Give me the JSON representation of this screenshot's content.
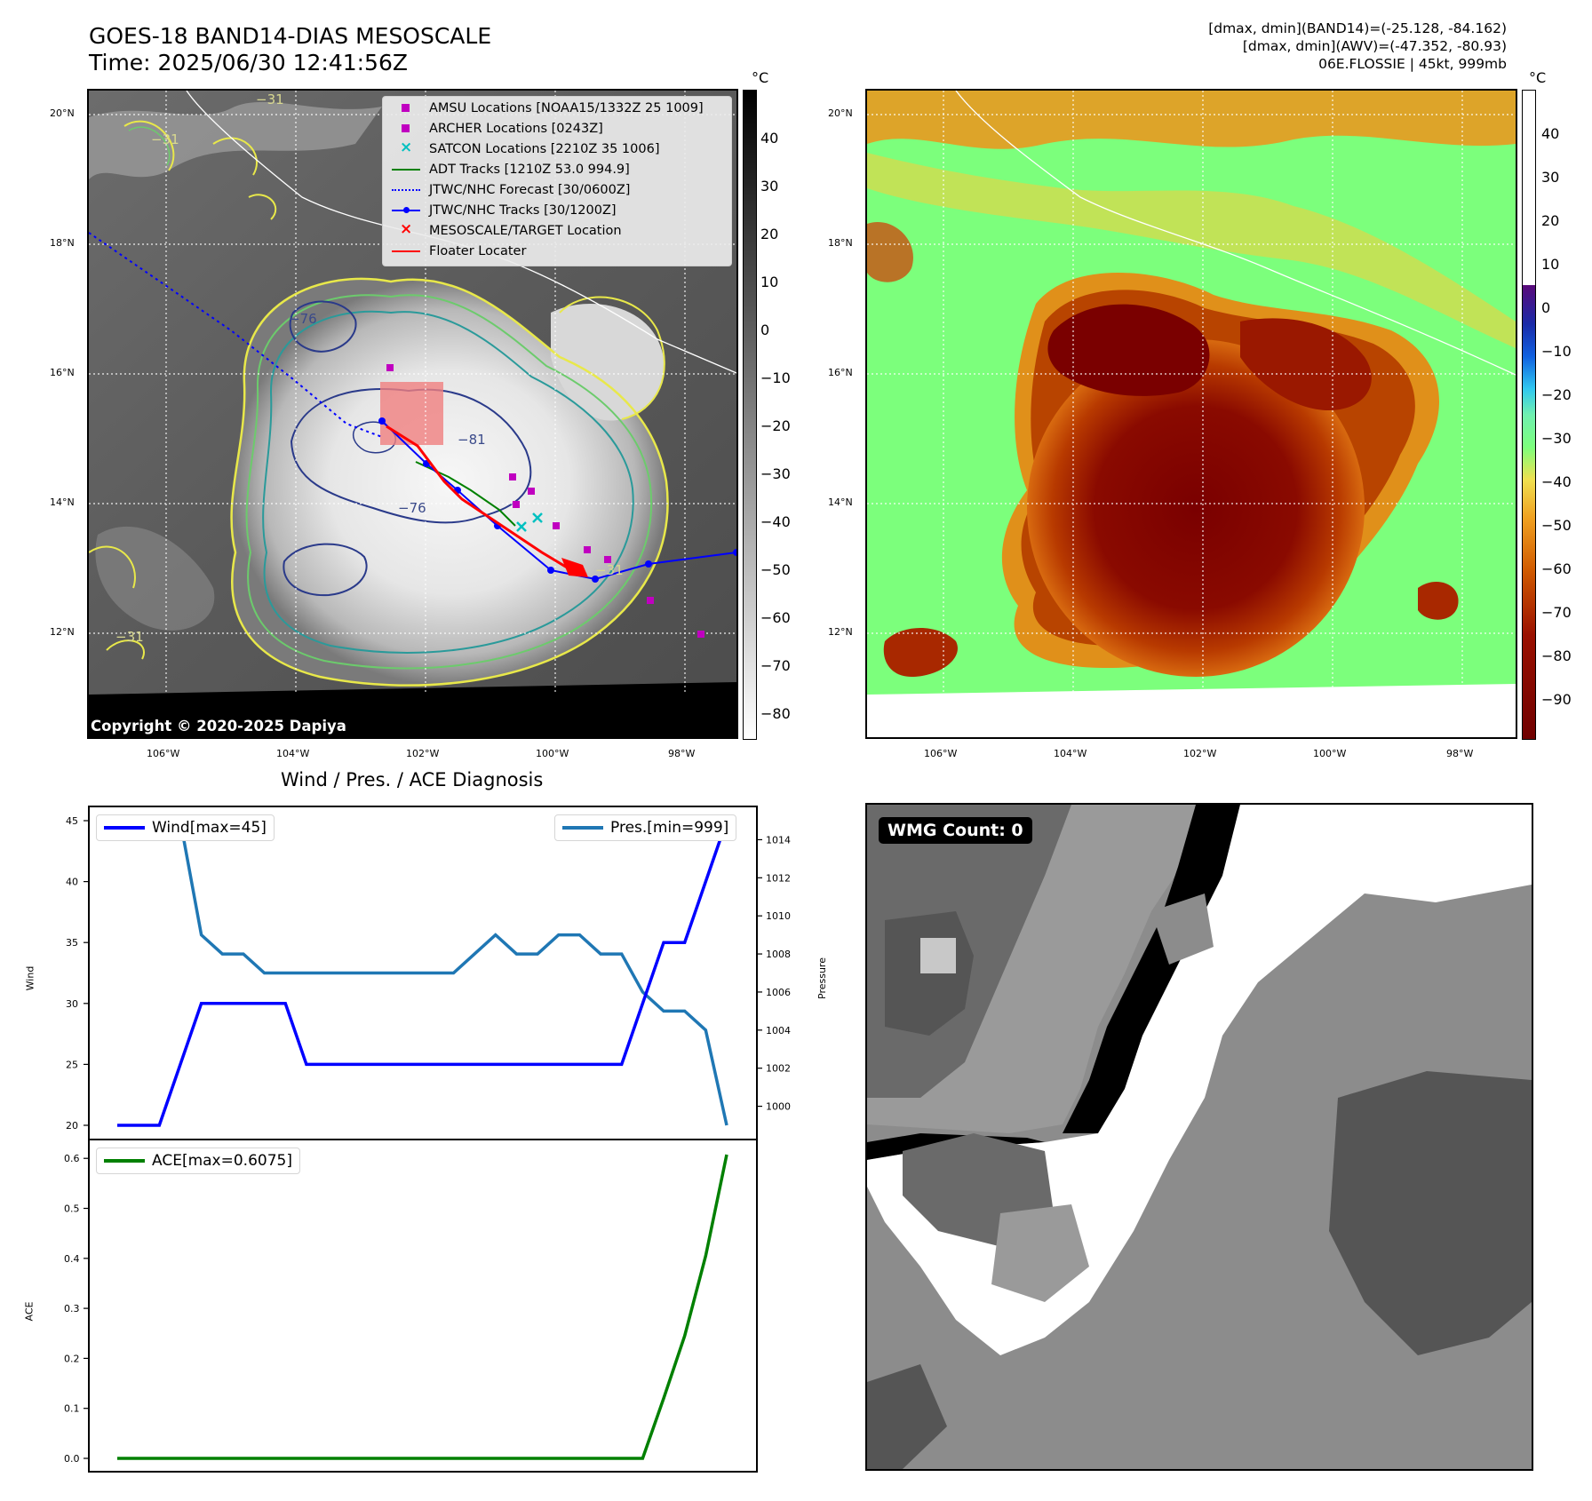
{
  "header": {
    "title_line1": "GOES-18 BAND14-DIAS MESOSCALE",
    "title_line2": "Time: 2025/06/30 12:41:56Z",
    "info_line1": "[dmax, dmin](BAND14)=(-25.128, -84.162)",
    "info_line2": "[dmax, dmin](AWV)=(-47.352, -80.93)",
    "info_line3": "06E.FLOSSIE | 45kt, 999mb"
  },
  "ir_panel": {
    "colorbar_unit": "°C",
    "colorbar_ticks": [
      "40",
      "30",
      "20",
      "10",
      "0",
      "−10",
      "−20",
      "−30",
      "−40",
      "−50",
      "−60",
      "−70",
      "−80"
    ],
    "lat_labels": [
      "20°N",
      "18°N",
      "16°N",
      "14°N",
      "12°N"
    ],
    "lon_labels": [
      "106°W",
      "104°W",
      "102°W",
      "100°W",
      "98°W"
    ],
    "copyright": "Copyright © 2020-2025 Dapiya",
    "contour_labels": [
      "−31",
      "−31",
      "−31",
      "−31",
      "−76",
      "−81",
      "−76",
      "−31",
      "−31"
    ],
    "legend": [
      {
        "label": "AMSU Locations [NOAA15/1332Z 25 1009]",
        "symbol": "square",
        "color": "#c000c0"
      },
      {
        "label": "ARCHER Locations [0243Z]",
        "symbol": "square",
        "color": "#c000c0"
      },
      {
        "label": "SATCON Locations [2210Z 35 1006]",
        "symbol": "x",
        "color": "#00c0c0"
      },
      {
        "label": "ADT Tracks [1210Z 53.0 994.9]",
        "symbol": "line",
        "color": "#008000"
      },
      {
        "label": "JTWC/NHC Forecast [30/0600Z]",
        "symbol": "dotted",
        "color": "#0000ff"
      },
      {
        "label": "JTWC/NHC Tracks [30/1200Z]",
        "symbol": "line-dot",
        "color": "#0000ff"
      },
      {
        "label": "MESOSCALE/TARGET Location",
        "symbol": "x",
        "color": "#ff0000"
      },
      {
        "label": "Floater Locater",
        "symbol": "line",
        "color": "#ff0000"
      }
    ]
  },
  "awv_panel": {
    "colorbar_unit": "°C",
    "colorbar_ticks": [
      "40",
      "30",
      "20",
      "10",
      "0",
      "−10",
      "−20",
      "−30",
      "−40",
      "−50",
      "−60",
      "−70",
      "−80",
      "−90"
    ],
    "lat_labels": [
      "20°N",
      "18°N",
      "16°N",
      "14°N",
      "12°N"
    ],
    "lon_labels": [
      "106°W",
      "104°W",
      "102°W",
      "100°W",
      "98°W"
    ]
  },
  "diagnosis": {
    "title": "Wind / Pres. / ACE Diagnosis",
    "wind_ylabel": "Wind",
    "pres_ylabel": "Pressure",
    "ace_ylabel": "ACE",
    "wind_legend": "Wind[max=45]",
    "pres_legend": "Pres.[min=999]",
    "ace_legend": "ACE[max=0.6075]",
    "colors": {
      "wind": "#0000ff",
      "pressure": "#1f77b4",
      "ace": "#008000"
    }
  },
  "wmg_panel": {
    "badge": "WMG Count: 0"
  },
  "chart_data": [
    {
      "type": "line",
      "name": "wind-pressure",
      "x": [
        0,
        1,
        2,
        3,
        4,
        5,
        6,
        7,
        8,
        9,
        10,
        11,
        12,
        13,
        14,
        15,
        16,
        17,
        18,
        19,
        20,
        21,
        22,
        23,
        24,
        25,
        26,
        27,
        28,
        29
      ],
      "series": [
        {
          "name": "Wind[max=45]",
          "axis": "left",
          "values": [
            20,
            20,
            20,
            25,
            30,
            30,
            30,
            30,
            30,
            25,
            25,
            25,
            25,
            25,
            25,
            25,
            25,
            25,
            25,
            25,
            25,
            25,
            25,
            25,
            25,
            30,
            35,
            35,
            40,
            45
          ]
        },
        {
          "name": "Pres.[min=999]",
          "axis": "right",
          "values": [
            1015,
            1015,
            1015,
            1015,
            1009,
            1008,
            1008,
            1007,
            1007,
            1007,
            1007,
            1007,
            1007,
            1007,
            1007,
            1007,
            1007,
            1008,
            1009,
            1008,
            1008,
            1009,
            1009,
            1008,
            1008,
            1006,
            1005,
            1005,
            1004,
            999
          ]
        }
      ],
      "ylabel": "Wind",
      "y2label": "Pressure",
      "ylim": [
        20,
        45
      ],
      "y2lim": [
        999,
        1015
      ],
      "yticks": [
        20,
        25,
        30,
        35,
        40,
        45
      ],
      "y2ticks": [
        1000,
        1002,
        1004,
        1006,
        1008,
        1010,
        1012,
        1014
      ]
    },
    {
      "type": "line",
      "name": "ace",
      "x": [
        0,
        1,
        2,
        3,
        4,
        5,
        6,
        7,
        8,
        9,
        10,
        11,
        12,
        13,
        14,
        15,
        16,
        17,
        18,
        19,
        20,
        21,
        22,
        23,
        24,
        25,
        26,
        27,
        28,
        29
      ],
      "series": [
        {
          "name": "ACE[max=0.6075]",
          "values": [
            0,
            0,
            0,
            0,
            0,
            0,
            0,
            0,
            0,
            0,
            0,
            0,
            0,
            0,
            0,
            0,
            0,
            0,
            0,
            0,
            0,
            0,
            0,
            0,
            0,
            0,
            0.12,
            0.245,
            0.405,
            0.6075
          ]
        }
      ],
      "ylabel": "ACE",
      "ylim": [
        0,
        0.6075
      ],
      "yticks": [
        0.0,
        0.1,
        0.2,
        0.3,
        0.4,
        0.5,
        0.6
      ]
    }
  ]
}
